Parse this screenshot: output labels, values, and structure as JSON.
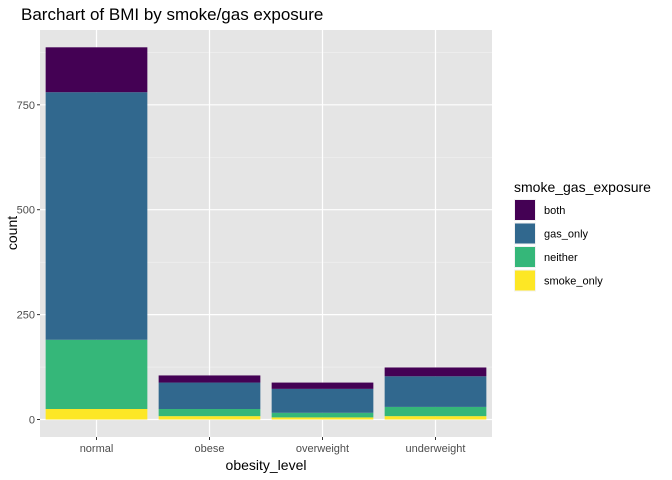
{
  "chart_data": {
    "type": "bar",
    "stacked": true,
    "title": "Barchart of BMI by smoke/gas exposure",
    "xlabel": "obesity_level",
    "ylabel": "count",
    "categories": [
      "normal",
      "obese",
      "overweight",
      "underweight"
    ],
    "ylim": [
      0,
      920
    ],
    "yticks": [
      0,
      250,
      500,
      750
    ],
    "ytick_labels": [
      "0",
      "250",
      "500",
      "750"
    ],
    "grid": true,
    "legend_title": "smoke_gas_exposure",
    "legend_position": "right",
    "series": [
      {
        "name": "smoke_only",
        "color": "#FDE725",
        "values": [
          25,
          8,
          5,
          8
        ]
      },
      {
        "name": "neither",
        "color": "#35B779",
        "values": [
          165,
          17,
          11,
          22
        ]
      },
      {
        "name": "gas_only",
        "color": "#31688E",
        "values": [
          590,
          63,
          57,
          73
        ]
      },
      {
        "name": "both",
        "color": "#440154",
        "values": [
          107,
          17,
          15,
          21
        ]
      }
    ],
    "legend_order": [
      "both",
      "gas_only",
      "neither",
      "smoke_only"
    ]
  }
}
